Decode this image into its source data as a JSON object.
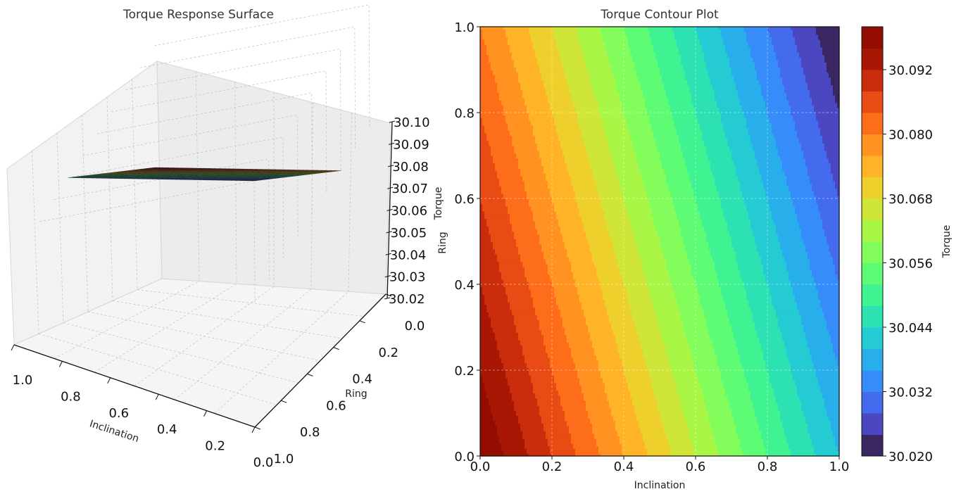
{
  "chart_data": [
    {
      "type": "surface",
      "title": "Torque Response Surface",
      "xlabel": "Inclination",
      "ylabel": "Ring",
      "zlabel": "Torque",
      "xlim": [
        0,
        1
      ],
      "ylim": [
        0,
        1
      ],
      "zlim": [
        30.02,
        30.1
      ],
      "x_ticks": [
        "1.0",
        "0.8",
        "0.6",
        "0.4",
        "0.2",
        "0.0"
      ],
      "y_ticks": [
        "0.0",
        "0.2",
        "0.4",
        "0.6",
        "0.8",
        "1.0"
      ],
      "z_ticks": [
        "30.02",
        "30.03",
        "30.04",
        "30.05",
        "30.06",
        "30.07",
        "30.08",
        "30.09",
        "30.10"
      ],
      "surface_corners": [
        {
          "inclination": 0,
          "ring": 0,
          "torque": 30.1
        },
        {
          "inclination": 1,
          "ring": 0,
          "torque": 30.04
        },
        {
          "inclination": 0,
          "ring": 1,
          "torque": 30.08
        },
        {
          "inclination": 1,
          "ring": 1,
          "torque": 30.02
        }
      ],
      "colormap": "turbo",
      "grid": true
    },
    {
      "type": "contour",
      "title": "Torque Contour Plot",
      "xlabel": "Inclination",
      "ylabel": "",
      "colorbar_label": "Torque",
      "xlim": [
        0,
        1
      ],
      "ylim": [
        0,
        1
      ],
      "x_ticks": [
        "0.0",
        "0.2",
        "0.4",
        "0.6",
        "0.8",
        "1.0"
      ],
      "y_ticks": [
        "0.0",
        "0.2",
        "0.4",
        "0.6",
        "0.8",
        "1.0"
      ],
      "colorbar_ticks": [
        "30.020",
        "30.032",
        "30.044",
        "30.056",
        "30.068",
        "30.080",
        "30.092"
      ],
      "levels": [
        30.02,
        30.024,
        30.028,
        30.032,
        30.036,
        30.04,
        30.044,
        30.048,
        30.052,
        30.056,
        30.06,
        30.064,
        30.068,
        30.072,
        30.076,
        30.08,
        30.084,
        30.088,
        30.092,
        30.096,
        30.1
      ],
      "surface_corners": [
        {
          "inclination": 0,
          "ring": 0,
          "torque": 30.1
        },
        {
          "inclination": 1,
          "ring": 0,
          "torque": 30.04
        },
        {
          "inclination": 0,
          "ring": 1,
          "torque": 30.08
        },
        {
          "inclination": 1,
          "ring": 1,
          "torque": 30.02
        }
      ],
      "colormap": "turbo",
      "grid": true
    }
  ]
}
